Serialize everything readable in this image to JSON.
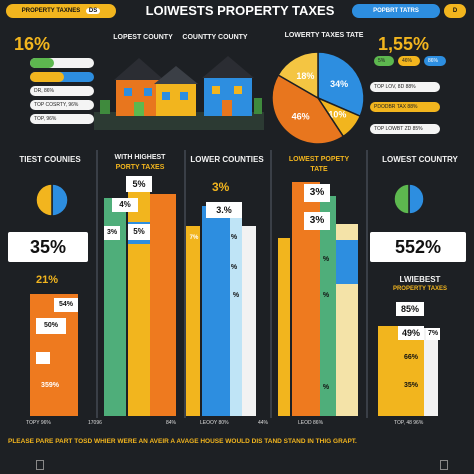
{
  "header": {
    "title": "LOIWESTS PROPERTY TAXES",
    "left_pill": "PROPERTY TAXNES",
    "left_pill_badge": "DS",
    "right_pill": "POPBRT TATRS",
    "right_pill_badge": "D"
  },
  "top_left": {
    "value": "16%",
    "items": [
      "ED, 80%",
      "",
      "DR, 86%",
      "TOP COSRTY, 96%",
      "TOP, 96%"
    ]
  },
  "top_center": {
    "label_1": "LOPEST COUNTY",
    "label_2": "COUNTTY COUNTY"
  },
  "top_pie": {
    "label": "LOWERTY TAXES TATE"
  },
  "top_right": {
    "value": "1,55%",
    "badges": [
      "5%",
      "46%",
      "86%"
    ],
    "items": [
      "TOP LOV, 8D 88%",
      "PDODBR TAX 88%",
      "TOP LOWBT ZD 85%"
    ]
  },
  "sections": {
    "s1_label": "TIEST COUNIES",
    "s1_value": "35%",
    "s1_sub": "21%",
    "s2_label_1": "WITH HIGHEST",
    "s2_label_2": "PORTY TAXES",
    "s3_label": "LOWER COUNTIES",
    "s3_value": "3%",
    "s4_label_1": "LOWEST POPETY",
    "s4_label_2": "TATE",
    "s5_label": "LOWEST COUNTRY",
    "s5_value": "552%",
    "s5_sub_1": "LWIEBEST",
    "s5_sub_2": "PROPERTY TAXES"
  },
  "bar_tags": {
    "b1": [
      "54%",
      "50%",
      "",
      "",
      "359%"
    ],
    "b2": [
      "5%",
      "4%",
      "5%",
      "3%"
    ],
    "b3": [
      "3.%",
      "7%",
      "%",
      "%",
      "%"
    ],
    "b4": [
      "3%",
      "3%",
      "%",
      "%",
      "%"
    ],
    "b5": [
      "85%",
      "49%",
      "66%",
      "7%",
      "35%"
    ]
  },
  "bottom_labels": [
    "TOPY 96%",
    "17096",
    "84%",
    "LEOOY 80%",
    "44%",
    "LEOD 86%",
    "TOP, 48 96%"
  ],
  "footer": "PLEASE PARE PART TOSD WHIER WERE AN AVEIR A AVAGE HOUSE WOULD DIS TAND STAND IN THIG GRAPT.",
  "chart_data": {
    "type": "bar",
    "title": "LOIWESTS PROPERTY TAXES",
    "pie": {
      "labels": [
        "34%",
        "10%",
        "46%",
        "18%"
      ],
      "values": [
        34,
        10,
        46,
        18
      ],
      "colors": [
        "#2d8ee0",
        "#f2b51e",
        "#e8761e",
        "#f4c542"
      ]
    },
    "small_pies": [
      {
        "values": [
          50,
          50
        ],
        "colors": [
          "#2d8ee0",
          "#f2b51e"
        ]
      },
      {
        "values": [
          50,
          50
        ],
        "colors": [
          "#2d8ee0",
          "#5db84f"
        ]
      }
    ]
  },
  "colors": {
    "orange": "#ee7a1f",
    "yellow": "#f2b51e",
    "blue": "#2d8ee0",
    "green": "#4fae7a",
    "light": "#f4e3a8"
  }
}
